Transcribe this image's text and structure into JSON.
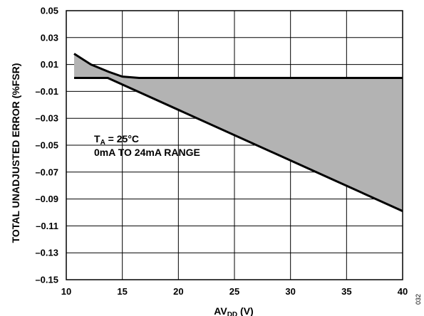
{
  "chart_data": {
    "type": "area",
    "ylabel": "TOTAL UNADJUSTED ERROR (%FSR)",
    "xlabel": {
      "main": "AV",
      "sub": "DD",
      "unit": " (V)"
    },
    "xlim": [
      10,
      40
    ],
    "ylim": [
      -0.15,
      0.05
    ],
    "x_ticks": [
      10,
      15,
      20,
      25,
      30,
      35,
      40
    ],
    "x_tick_labels": [
      "10",
      "15",
      "20",
      "25",
      "30",
      "35",
      "40"
    ],
    "y_ticks": [
      0.05,
      0.03,
      0.01,
      -0.01,
      -0.03,
      -0.05,
      -0.07,
      -0.09,
      -0.11,
      -0.13,
      -0.15
    ],
    "y_tick_labels": [
      "0.05",
      "0.03",
      "0.01",
      "–0.01",
      "–0.03",
      "–0.05",
      "–0.07",
      "–0.09",
      "–0.11",
      "–0.13",
      "–0.15"
    ],
    "grid": true,
    "shaded_region_color": "#b3b3b3",
    "series": [
      {
        "x": [
          10.7,
          12.2,
          13.8,
          15.0,
          16.5,
          18.0,
          40.0
        ],
        "y": [
          0.018,
          0.01,
          0.0045,
          0.001,
          0.0,
          0.0,
          0.0
        ]
      },
      {
        "x": [
          10.7,
          13.7,
          40.0
        ],
        "y": [
          0.0,
          0.0,
          -0.099
        ]
      }
    ],
    "annotation": {
      "line1": {
        "main": "T",
        "sub": "A",
        "rest": " = 25°C"
      },
      "line2": "0mA TO 24mA RANGE"
    },
    "figure_id": "032"
  }
}
